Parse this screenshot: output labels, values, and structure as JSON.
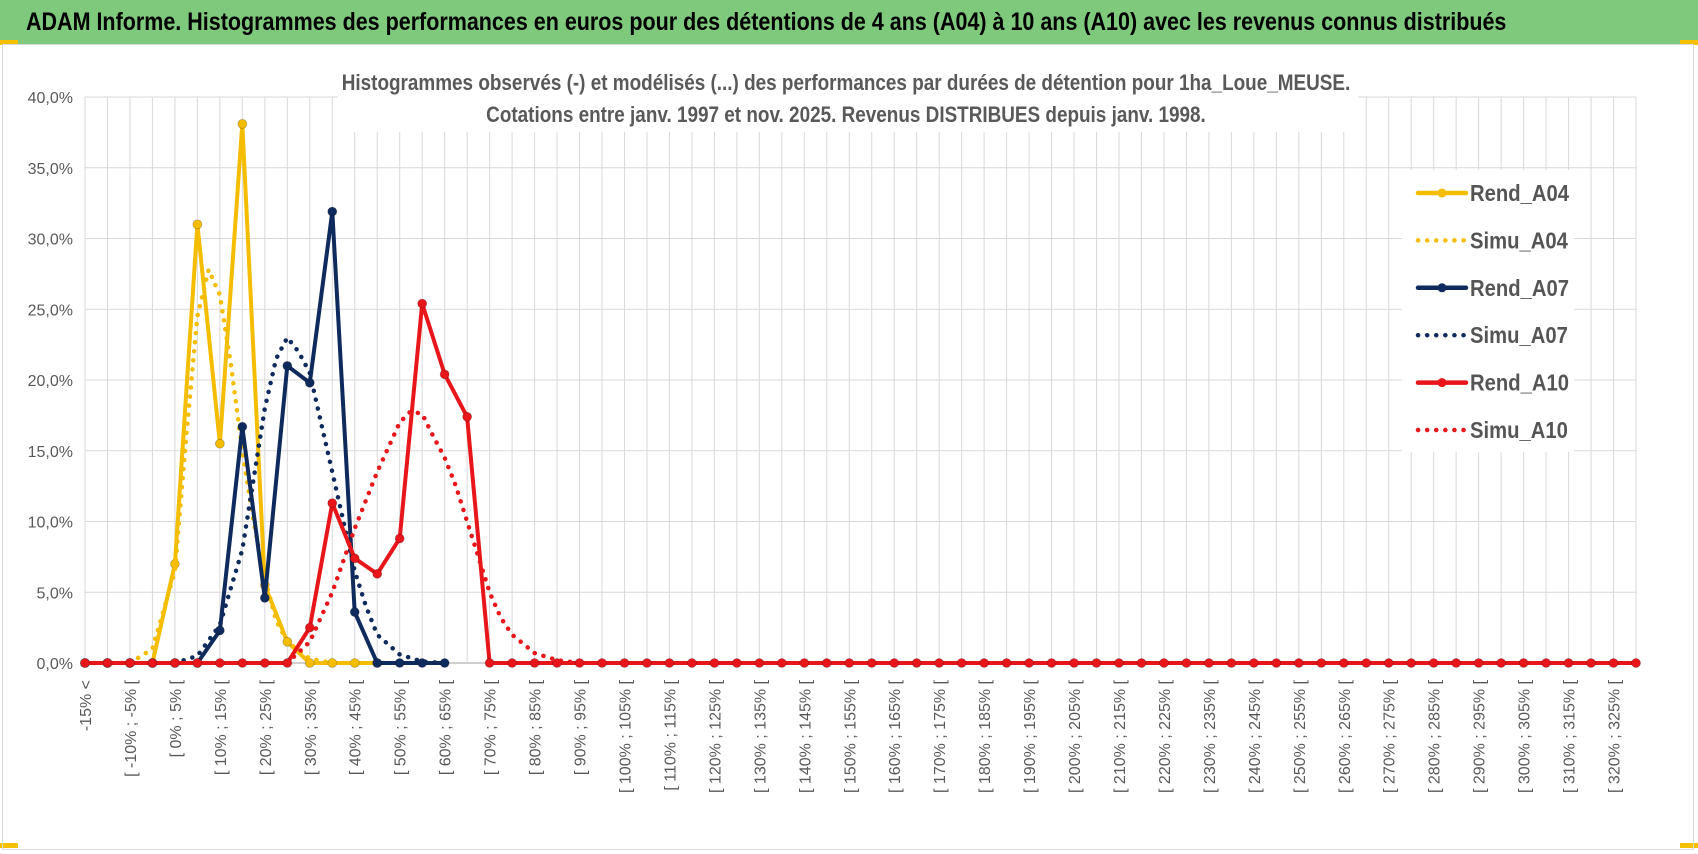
{
  "header": {
    "title": "ADAM Informe. Histogrammes des performances en euros pour des détentions de 4 ans (A04) à 10 ans (A10) avec les revenus connus distribués"
  },
  "chart_data": {
    "type": "line",
    "title": "Histogrammes observés (-) et modélisés (...) des performances par durées de détention pour 1ha_Loue_MEUSE.",
    "subtitle": "Cotations entre janv. 1997 et nov. 2025. Revenus DISTRIBUES depuis janv. 1998.",
    "xlabel": "",
    "ylabel": "",
    "ylim": [
      0,
      40
    ],
    "y_ticks": [
      "0,0%",
      "5,0%",
      "10,0%",
      "15,0%",
      "20,0%",
      "25,0%",
      "30,0%",
      "35,0%",
      "40,0%"
    ],
    "grid": true,
    "legend_position": "right",
    "categories": [
      "-15% <",
      "[ -10% ; -5% [",
      "[ 0% ; 5% [",
      "[ 10% ; 15% [",
      "[ 20% ; 25% [",
      "[ 30% ; 35% [",
      "[ 40% ; 45% [",
      "[ 50% ; 55% [",
      "[ 60% ; 65% [",
      "[ 70% ; 75% [",
      "[ 80% ; 85% [",
      "[ 90% ; 95% [",
      "[ 100% ; 105% [",
      "[ 110% ; 115% [",
      "[ 120% ; 125% [",
      "[ 130% ; 135% [",
      "[ 140% ; 145% [",
      "[ 150% ; 155% [",
      "[ 160% ; 165% [",
      "[ 170% ; 175% [",
      "[ 180% ; 185% [",
      "[ 190% ; 195% [",
      "[ 200% ; 205% [",
      "[ 210% ; 215% [",
      "[ 220% ; 225% [",
      "[ 230% ; 235% [",
      "[ 240% ; 245% [",
      "[ 250% ; 255% [",
      "[ 260% ; 265% [",
      "[ 270% ; 275% [",
      "[ 280% ; 285% [",
      "[ 290% ; 295% [",
      "[ 300% ; 305% [",
      "[ 310% ; 315% [",
      "[ 320% ; 325% ["
    ],
    "x_points": [
      -15,
      -10,
      -5,
      0,
      5,
      10,
      15,
      20,
      25,
      30,
      35,
      40,
      45,
      50,
      55,
      60,
      65,
      70,
      75,
      80,
      85,
      90,
      95,
      100,
      105,
      110,
      115,
      120,
      125,
      130,
      135,
      140,
      145,
      150,
      155,
      160,
      165,
      170,
      175,
      180,
      185,
      190,
      195,
      200,
      205,
      210,
      215,
      220,
      225,
      230,
      235,
      240,
      245,
      250,
      255,
      260,
      265,
      270,
      275,
      280,
      285,
      290,
      295,
      300,
      305,
      310,
      315,
      320,
      325,
      330
    ],
    "series": [
      {
        "name": "Rend_A04",
        "color": "#f5bd00",
        "style": "solid",
        "markers": true,
        "points": [
          [
            -15,
            0
          ],
          [
            -10,
            0
          ],
          [
            -5,
            0
          ],
          [
            0,
            0
          ],
          [
            5,
            7
          ],
          [
            10,
            31
          ],
          [
            15,
            15.5
          ],
          [
            20,
            38.1
          ],
          [
            25,
            5.5
          ],
          [
            30,
            1.5
          ],
          [
            35,
            0
          ],
          [
            40,
            0
          ],
          [
            45,
            0
          ],
          [
            50,
            0
          ]
        ]
      },
      {
        "name": "Simu_A04",
        "color": "#f5bd00",
        "style": "dotted",
        "markers": false,
        "points": [
          [
            -15,
            0
          ],
          [
            -10,
            0
          ],
          [
            -5,
            0
          ],
          [
            0,
            1
          ],
          [
            5,
            6.5
          ],
          [
            7.5,
            16
          ],
          [
            10,
            24.5
          ],
          [
            12.5,
            27.8
          ],
          [
            15,
            26
          ],
          [
            17.5,
            21
          ],
          [
            20,
            15
          ],
          [
            22.5,
            10
          ],
          [
            25,
            6
          ],
          [
            27.5,
            3
          ],
          [
            30,
            1.5
          ],
          [
            35,
            0.3
          ],
          [
            40,
            0
          ],
          [
            45,
            0
          ]
        ]
      },
      {
        "name": "Rend_A07",
        "color": "#0f2a5c",
        "style": "solid",
        "markers": true,
        "points": [
          [
            -15,
            0
          ],
          [
            -10,
            0
          ],
          [
            -5,
            0
          ],
          [
            0,
            0
          ],
          [
            5,
            0
          ],
          [
            10,
            0
          ],
          [
            15,
            2.3
          ],
          [
            20,
            16.7
          ],
          [
            25,
            4.6
          ],
          [
            30,
            21
          ],
          [
            35,
            19.8
          ],
          [
            40,
            31.9
          ],
          [
            45,
            3.6
          ],
          [
            50,
            0
          ],
          [
            55,
            0
          ],
          [
            60,
            0
          ],
          [
            65,
            0
          ]
        ]
      },
      {
        "name": "Simu_A07",
        "color": "#0f2a5c",
        "style": "dotted",
        "markers": false,
        "points": [
          [
            5,
            0
          ],
          [
            10,
            0.5
          ],
          [
            15,
            2.7
          ],
          [
            20,
            8
          ],
          [
            22.5,
            13
          ],
          [
            25,
            18
          ],
          [
            27.5,
            21.5
          ],
          [
            30,
            23
          ],
          [
            32.5,
            22
          ],
          [
            35,
            20.5
          ],
          [
            37.5,
            17
          ],
          [
            40,
            13.5
          ],
          [
            42.5,
            10
          ],
          [
            45,
            6.5
          ],
          [
            47.5,
            4
          ],
          [
            50,
            2
          ],
          [
            55,
            0.6
          ],
          [
            60,
            0.1
          ],
          [
            65,
            0
          ]
        ]
      },
      {
        "name": "Rend_A10",
        "color": "#e8161b",
        "style": "solid",
        "markers": true,
        "points": [
          [
            -15,
            0
          ],
          [
            -10,
            0
          ],
          [
            -5,
            0
          ],
          [
            0,
            0
          ],
          [
            5,
            0
          ],
          [
            10,
            0
          ],
          [
            15,
            0
          ],
          [
            20,
            0
          ],
          [
            25,
            0
          ],
          [
            30,
            0
          ],
          [
            35,
            2.5
          ],
          [
            40,
            11.3
          ],
          [
            45,
            7.4
          ],
          [
            50,
            6.3
          ],
          [
            55,
            8.8
          ],
          [
            60,
            25.4
          ],
          [
            65,
            20.4
          ],
          [
            70,
            17.4
          ],
          [
            75,
            0
          ],
          [
            80,
            0
          ],
          [
            85,
            0
          ],
          [
            90,
            0
          ],
          [
            95,
            0
          ],
          [
            100,
            0
          ],
          [
            105,
            0
          ],
          [
            110,
            0
          ],
          [
            115,
            0
          ],
          [
            120,
            0
          ],
          [
            125,
            0
          ],
          [
            130,
            0
          ],
          [
            135,
            0
          ],
          [
            140,
            0
          ],
          [
            145,
            0
          ],
          [
            150,
            0
          ],
          [
            155,
            0
          ],
          [
            160,
            0
          ],
          [
            165,
            0
          ],
          [
            170,
            0
          ],
          [
            175,
            0
          ],
          [
            180,
            0
          ],
          [
            185,
            0
          ],
          [
            190,
            0
          ],
          [
            195,
            0
          ],
          [
            200,
            0
          ],
          [
            205,
            0
          ],
          [
            210,
            0
          ],
          [
            215,
            0
          ],
          [
            220,
            0
          ],
          [
            225,
            0
          ],
          [
            230,
            0
          ],
          [
            235,
            0
          ],
          [
            240,
            0
          ],
          [
            245,
            0
          ],
          [
            250,
            0
          ],
          [
            255,
            0
          ],
          [
            260,
            0
          ],
          [
            265,
            0
          ],
          [
            270,
            0
          ],
          [
            275,
            0
          ],
          [
            280,
            0
          ],
          [
            285,
            0
          ],
          [
            290,
            0
          ],
          [
            295,
            0
          ],
          [
            300,
            0
          ],
          [
            305,
            0
          ],
          [
            310,
            0
          ],
          [
            315,
            0
          ],
          [
            320,
            0
          ],
          [
            325,
            0
          ],
          [
            330,
            0
          ]
        ]
      },
      {
        "name": "Simu_A10",
        "color": "#e8161b",
        "style": "dotted",
        "markers": false,
        "points": [
          [
            30,
            0
          ],
          [
            35,
            1.5
          ],
          [
            40,
            5
          ],
          [
            45,
            9.5
          ],
          [
            50,
            13.5
          ],
          [
            55,
            17
          ],
          [
            57.5,
            17.8
          ],
          [
            60,
            17.6
          ],
          [
            62.5,
            16
          ],
          [
            65,
            14.5
          ],
          [
            67.5,
            12.5
          ],
          [
            70,
            10
          ],
          [
            72.5,
            7.5
          ],
          [
            75,
            5
          ],
          [
            77.5,
            3.2
          ],
          [
            80,
            2
          ],
          [
            85,
            0.7
          ],
          [
            90,
            0.2
          ],
          [
            95,
            0
          ]
        ]
      }
    ]
  }
}
